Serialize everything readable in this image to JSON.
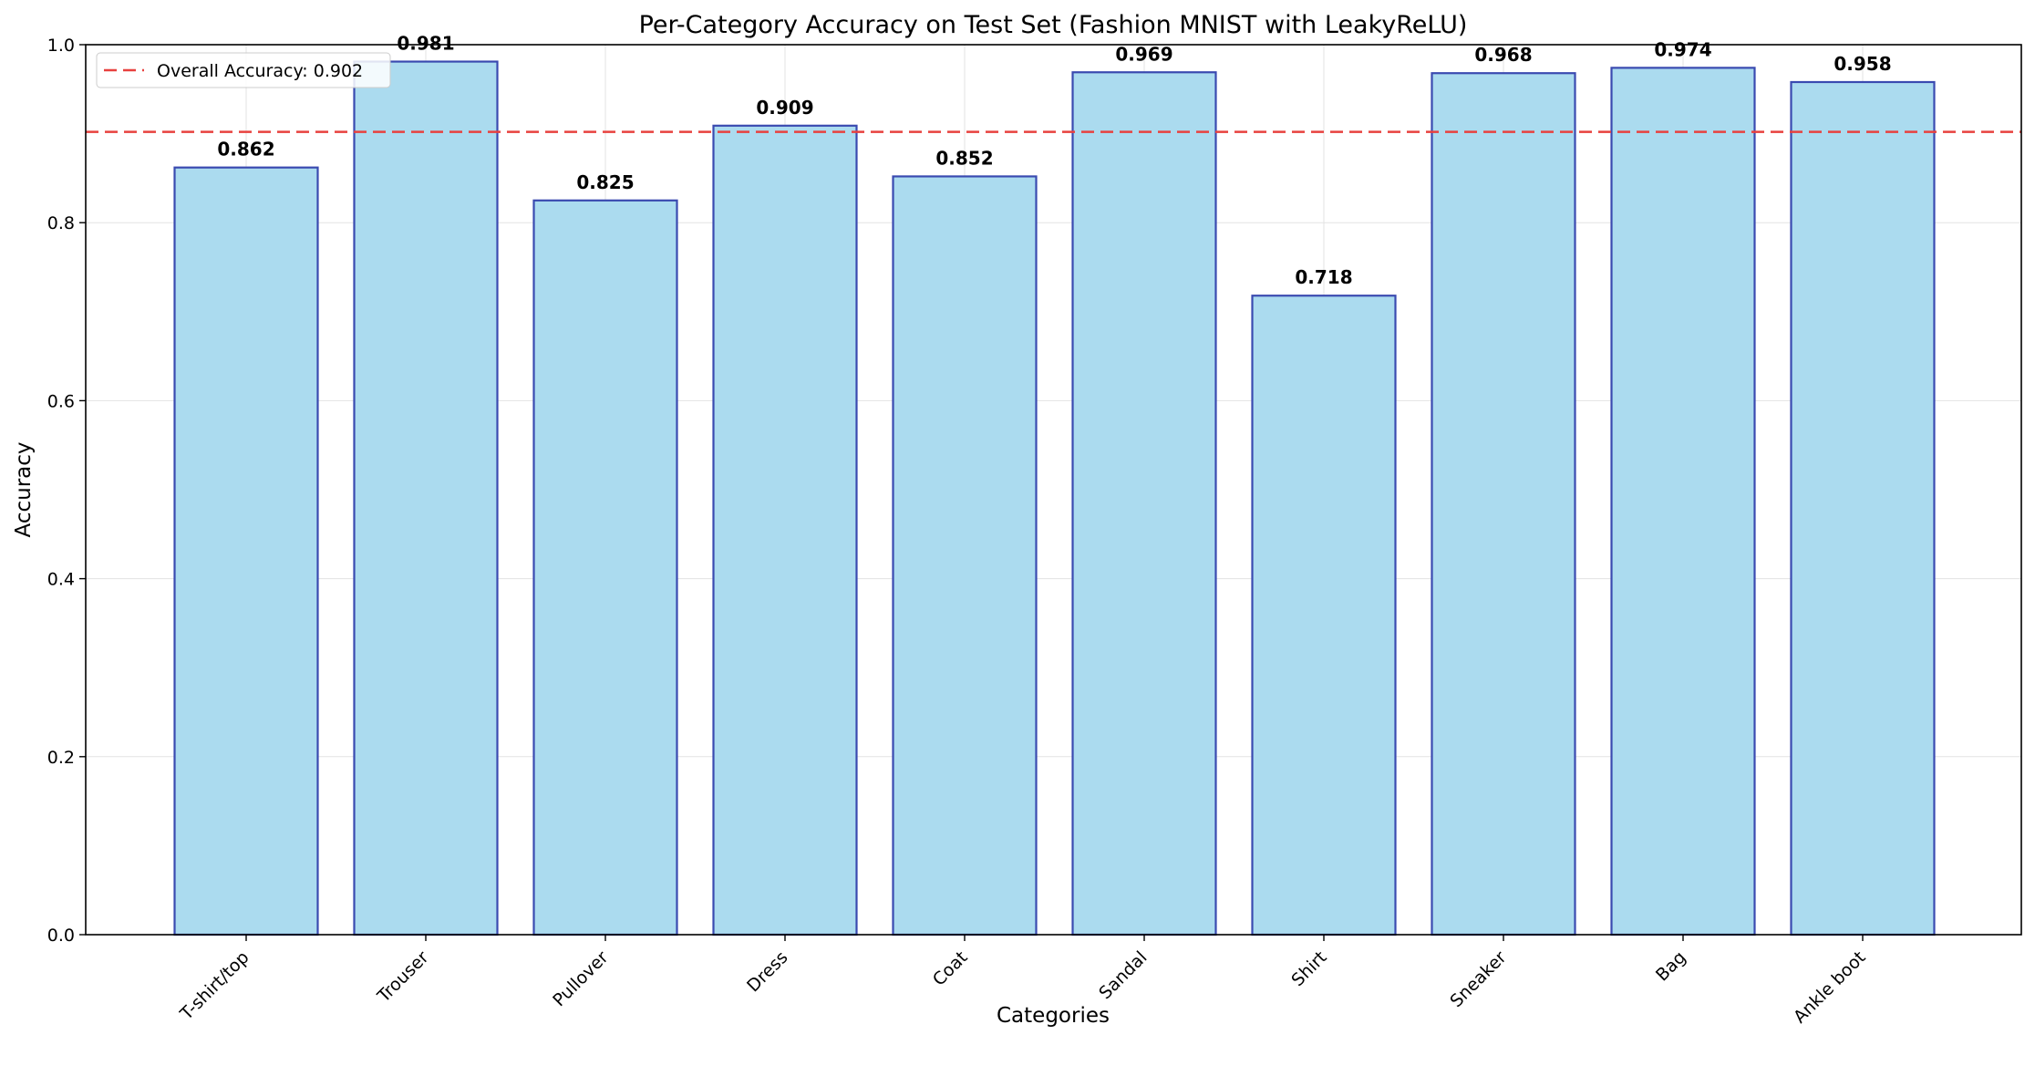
{
  "chart_data": {
    "type": "bar",
    "title": "Per-Category Accuracy on Test Set (Fashion MNIST with LeakyReLU)",
    "xlabel": "Categories",
    "ylabel": "Accuracy",
    "ylim": [
      0,
      1.0
    ],
    "yticks": [
      "0.0",
      "0.2",
      "0.4",
      "0.6",
      "0.8",
      "1.0"
    ],
    "categories": [
      "T-shirt/top",
      "Trouser",
      "Pullover",
      "Dress",
      "Coat",
      "Sandal",
      "Shirt",
      "Sneaker",
      "Bag",
      "Ankle boot"
    ],
    "values": [
      0.862,
      0.981,
      0.825,
      0.909,
      0.852,
      0.969,
      0.718,
      0.968,
      0.974,
      0.958
    ],
    "value_labels": [
      "0.862",
      "0.981",
      "0.825",
      "0.909",
      "0.852",
      "0.969",
      "0.718",
      "0.968",
      "0.974",
      "0.958"
    ],
    "reference_line": {
      "value": 0.902,
      "label": "Overall Accuracy: 0.902",
      "color": "#e8413f"
    },
    "bar_fill": "#abdbef",
    "bar_edge": "#3a4ab0",
    "grid": true,
    "legend_position": "upper-left"
  }
}
